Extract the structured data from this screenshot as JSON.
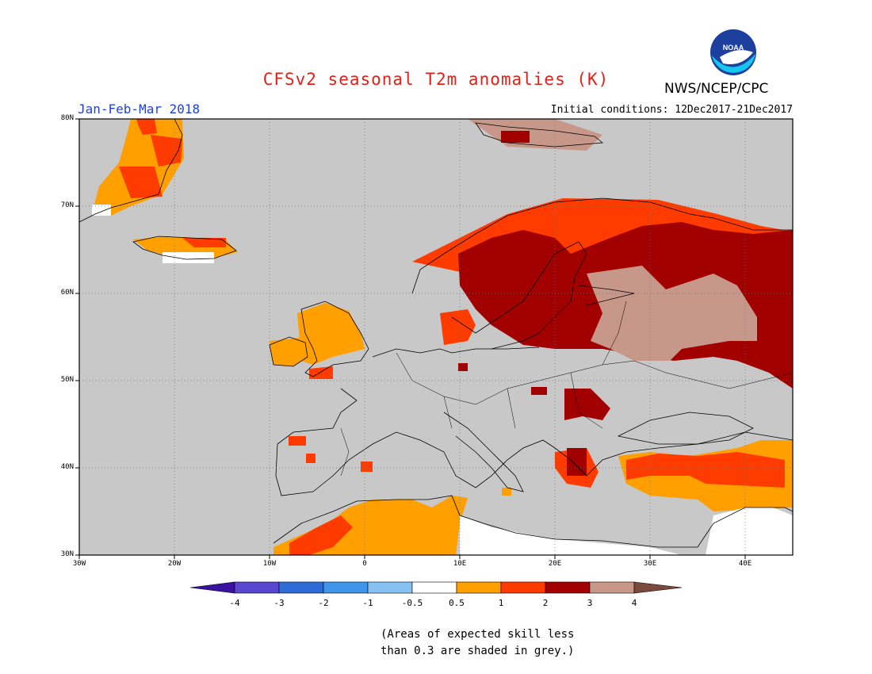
{
  "title": "CFSv2 seasonal T2m anomalies (K)",
  "agency": "NWS/NCEP/CPC",
  "logo_text": "NOAA",
  "period": "Jan-Feb-Mar 2018",
  "initial_conditions": "Initial conditions: 12Dec2017-21Dec2017",
  "note_line1": "(Areas of expected skill less",
  "note_line2": "than 0.3 are shaded in grey.)",
  "map": {
    "lon_range": [
      -30,
      45
    ],
    "lat_range": [
      30,
      80
    ],
    "lat_ticks": [
      "30N",
      "40N",
      "50N",
      "60N",
      "70N",
      "80N"
    ],
    "lon_ticks": [
      "30W",
      "20W",
      "10W",
      "0",
      "10E",
      "20E",
      "30E",
      "40E"
    ],
    "background_grey": "#c8c8c8",
    "colorbar": {
      "labels": [
        "-4",
        "-3",
        "-2",
        "-1",
        "-0.5",
        "0.5",
        "1",
        "2",
        "3",
        "4"
      ],
      "colors": [
        "#3a12a0",
        "#5b46cf",
        "#2f6bd6",
        "#3f95ea",
        "#86c1f2",
        "#ffffff",
        "#ff9f00",
        "#ff3b00",
        "#a20000",
        "#c7978a",
        "#7a4a3c"
      ]
    },
    "anomaly_regions": [
      {
        "name": "greenland-east",
        "class": "0.5-1",
        "color": "#ff9f00"
      },
      {
        "name": "greenland-east-warm",
        "class": "1-2",
        "color": "#ff3b00"
      },
      {
        "name": "iceland",
        "class": "0.5-2",
        "color": "#ff9f00"
      },
      {
        "name": "scandinavia",
        "class": "2-3",
        "color": "#a20000"
      },
      {
        "name": "western-russia",
        "class": "3-4",
        "color": "#c7978a"
      },
      {
        "name": "british-isles",
        "class": "0.5-1",
        "color": "#ff9f00"
      },
      {
        "name": "turkey",
        "class": "0.5-2",
        "color": "#ff3b00"
      },
      {
        "name": "north-africa",
        "class": "0.5-1",
        "color": "#ff9f00"
      },
      {
        "name": "balkans",
        "class": "1-3",
        "color": "#a20000"
      }
    ]
  }
}
